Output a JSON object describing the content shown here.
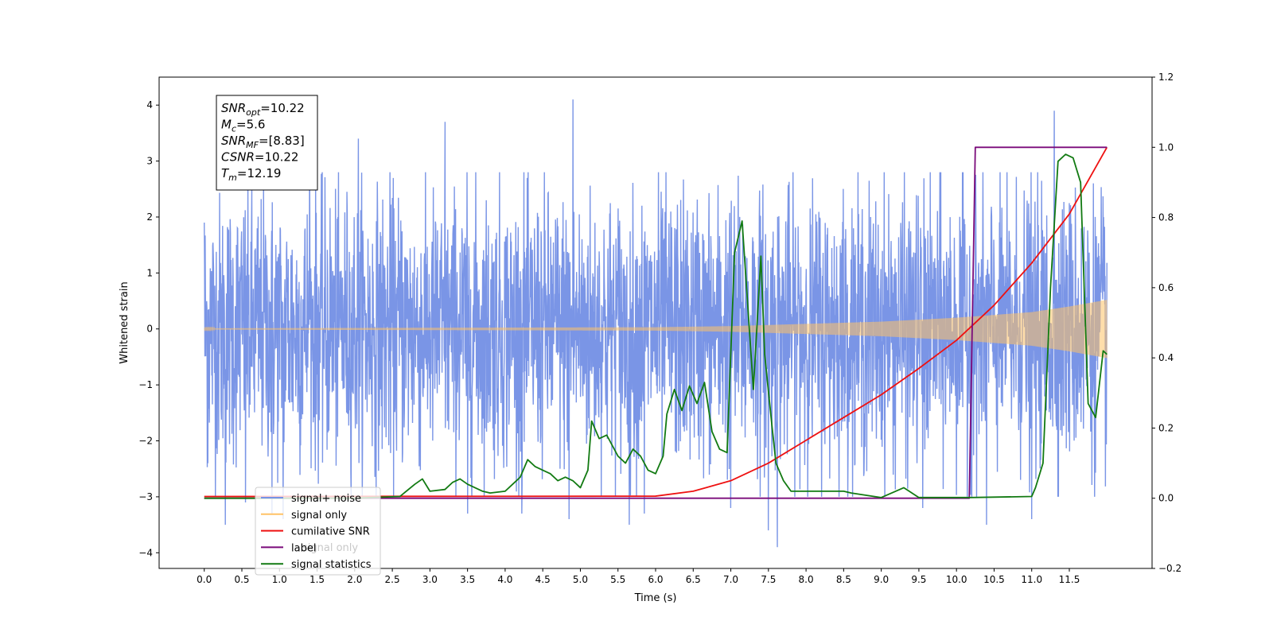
{
  "chart_data": {
    "type": "line",
    "title": "",
    "xlabel": "Time (s)",
    "ylabel": "Whitened strain",
    "ylabel_right": "",
    "xlim": [
      -0.6,
      12.6
    ],
    "ylim": [
      -4.28,
      4.5
    ],
    "ylim_right": [
      -0.2,
      1.2
    ],
    "x_ticks": [
      "0.0",
      "0.5",
      "1.0",
      "1.5",
      "2.0",
      "2.5",
      "3.0",
      "3.5",
      "4.0",
      "4.5",
      "5.0",
      "5.5",
      "6.0",
      "6.5",
      "7.0",
      "7.5",
      "8.0",
      "8.5",
      "9.0",
      "9.5",
      "10.0",
      "10.5",
      "11.0",
      "11.5"
    ],
    "y_ticks_left": [
      "4",
      "3",
      "2",
      "1",
      "0",
      "−1",
      "−2",
      "−3",
      "−4"
    ],
    "y_ticks_right": [
      "1.2",
      "1.0",
      "0.8",
      "0.6",
      "0.4",
      "0.2",
      "0.0",
      "−0.2"
    ],
    "grid": false,
    "legend_position": "bottom-left",
    "annotation": {
      "lines": [
        {
          "sym": "SNR",
          "sub": "opt",
          "value": "=10.22"
        },
        {
          "sym": "M",
          "sub": "c",
          "value": "=5.6"
        },
        {
          "sym": "SNR",
          "sub": "MF",
          "value": "=[8.83]"
        },
        {
          "sym": "CSNR",
          "sub": "",
          "value": "=10.22"
        },
        {
          "sym": "T",
          "sub": "m",
          "value": "=12.19"
        }
      ]
    },
    "legend": [
      {
        "label": "signal+ noise",
        "color": "#7793e6"
      },
      {
        "label": "signal only",
        "color": "#ffc266"
      },
      {
        "label": "cumilative SNR",
        "color": "#ee1111"
      },
      {
        "label": "label",
        "color": "#7a0a7a"
      },
      {
        "label": "signal statistics",
        "color": "#127a12"
      }
    ],
    "legend_overlap_text": "signal only",
    "series": [
      {
        "name": "signal+ noise",
        "axis": "left",
        "color": "#7793e6",
        "kind": "noise",
        "x_range": [
          0.0,
          12.0
        ],
        "sample_count": 3000,
        "approx_std": 1.2,
        "peak_points": [
          [
            0.0,
            1.9
          ],
          [
            0.05,
            -2.4
          ],
          [
            0.28,
            -3.5
          ],
          [
            0.55,
            -3.1
          ],
          [
            0.9,
            -3.3
          ],
          [
            1.05,
            -3.4
          ],
          [
            1.4,
            3.3
          ],
          [
            2.05,
            3.4
          ],
          [
            3.2,
            3.7
          ],
          [
            3.5,
            -3.3
          ],
          [
            4.22,
            -3.3
          ],
          [
            4.9,
            4.1
          ],
          [
            4.85,
            -3.4
          ],
          [
            5.65,
            -3.5
          ],
          [
            5.85,
            -3.3
          ],
          [
            7.0,
            -3.2
          ],
          [
            7.5,
            -3.6
          ],
          [
            7.62,
            -3.9
          ],
          [
            9.55,
            -3.2
          ],
          [
            10.4,
            -3.5
          ],
          [
            11.0,
            -3.4
          ],
          [
            11.3,
            3.9
          ]
        ]
      },
      {
        "name": "signal only",
        "axis": "left",
        "color": "#ffc266",
        "kind": "chirp",
        "envelope": [
          [
            0.0,
            0.01
          ],
          [
            6.0,
            0.03
          ],
          [
            7.0,
            0.05
          ],
          [
            8.0,
            0.09
          ],
          [
            9.0,
            0.13
          ],
          [
            10.0,
            0.2
          ],
          [
            11.0,
            0.3
          ],
          [
            11.5,
            0.4
          ],
          [
            12.0,
            0.52
          ]
        ]
      },
      {
        "name": "cumilative SNR",
        "axis": "right",
        "color": "#ee1111",
        "x": [
          0.0,
          6.0,
          6.5,
          7.0,
          7.5,
          8.0,
          8.5,
          9.0,
          9.5,
          10.0,
          10.5,
          11.0,
          11.5,
          12.0
        ],
        "values": [
          0.005,
          0.006,
          0.02,
          0.05,
          0.1,
          0.165,
          0.23,
          0.295,
          0.37,
          0.45,
          0.55,
          0.67,
          0.81,
          1.0
        ]
      },
      {
        "name": "label",
        "axis": "right",
        "color": "#7a0a7a",
        "x": [
          0.0,
          10.17,
          10.25,
          12.0
        ],
        "values": [
          0.0,
          0.0,
          1.0,
          1.0
        ]
      },
      {
        "name": "signal statistics",
        "axis": "right",
        "color": "#127a12",
        "x": [
          0.0,
          1.0,
          2.0,
          2.6,
          2.8,
          2.9,
          3.0,
          3.2,
          3.3,
          3.4,
          3.5,
          3.7,
          3.8,
          4.0,
          4.1,
          4.2,
          4.3,
          4.4,
          4.5,
          4.6,
          4.7,
          4.8,
          4.9,
          5.0,
          5.1,
          5.15,
          5.25,
          5.35,
          5.5,
          5.6,
          5.7,
          5.8,
          5.9,
          6.0,
          6.1,
          6.15,
          6.25,
          6.35,
          6.45,
          6.55,
          6.65,
          6.75,
          6.85,
          6.95,
          7.05,
          7.15,
          7.3,
          7.4,
          7.45,
          7.55,
          7.6,
          7.7,
          7.8,
          8.0,
          8.5,
          8.6,
          9.0,
          9.3,
          9.5,
          10.2,
          11.0,
          11.05,
          11.15,
          11.25,
          11.35,
          11.45,
          11.55,
          11.65,
          11.75,
          11.85,
          11.95,
          12.0
        ],
        "values": [
          0.0,
          0.0,
          0.0,
          0.005,
          0.04,
          0.055,
          0.02,
          0.025,
          0.045,
          0.055,
          0.04,
          0.02,
          0.015,
          0.02,
          0.04,
          0.06,
          0.11,
          0.09,
          0.08,
          0.07,
          0.05,
          0.06,
          0.05,
          0.03,
          0.08,
          0.22,
          0.17,
          0.18,
          0.12,
          0.1,
          0.14,
          0.12,
          0.08,
          0.07,
          0.12,
          0.24,
          0.31,
          0.25,
          0.32,
          0.27,
          0.33,
          0.19,
          0.14,
          0.13,
          0.7,
          0.79,
          0.31,
          0.69,
          0.41,
          0.2,
          0.1,
          0.05,
          0.02,
          0.02,
          0.02,
          0.015,
          0.002,
          0.03,
          0.002,
          0.002,
          0.005,
          0.03,
          0.1,
          0.6,
          0.96,
          0.98,
          0.97,
          0.9,
          0.27,
          0.23,
          0.42,
          0.41
        ]
      }
    ]
  }
}
